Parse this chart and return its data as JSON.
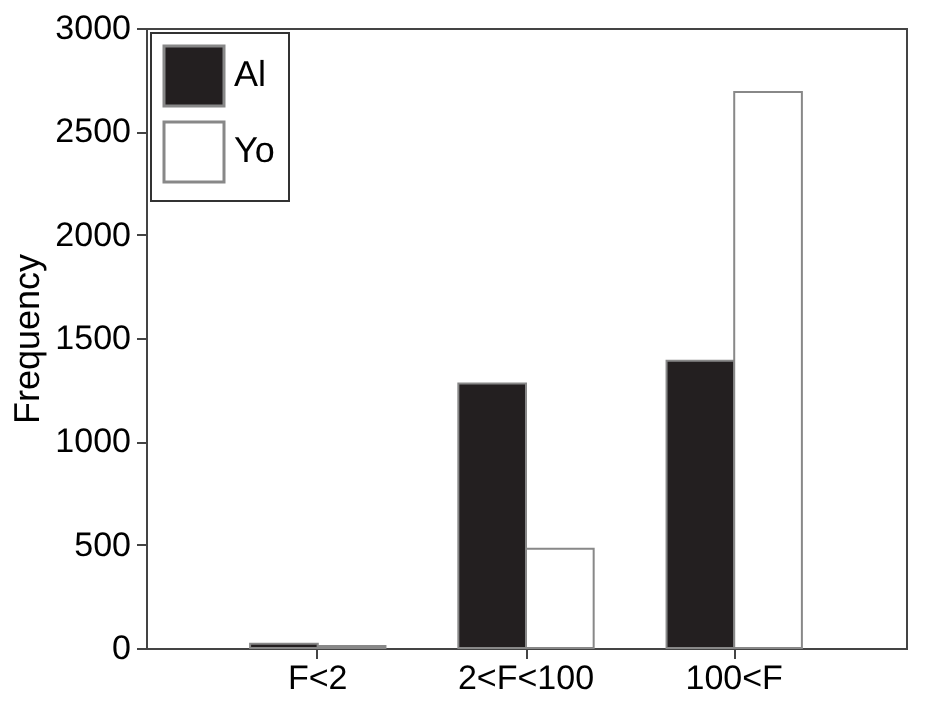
{
  "chart_data": {
    "type": "bar",
    "ylabel": "Frequency",
    "categories": [
      "F<2",
      "2<F<100",
      "100<F"
    ],
    "series": [
      {
        "name": "Al",
        "color": "#231f20",
        "values": [
          20,
          1280,
          1390
        ]
      },
      {
        "name": "Yo",
        "color": "#ffffff",
        "values": [
          10,
          480,
          2690
        ]
      }
    ],
    "ylim": [
      0,
      3000
    ],
    "yticks": [
      0,
      500,
      1000,
      1500,
      2000,
      2500,
      3000
    ],
    "grid": false,
    "legend": "top left"
  }
}
